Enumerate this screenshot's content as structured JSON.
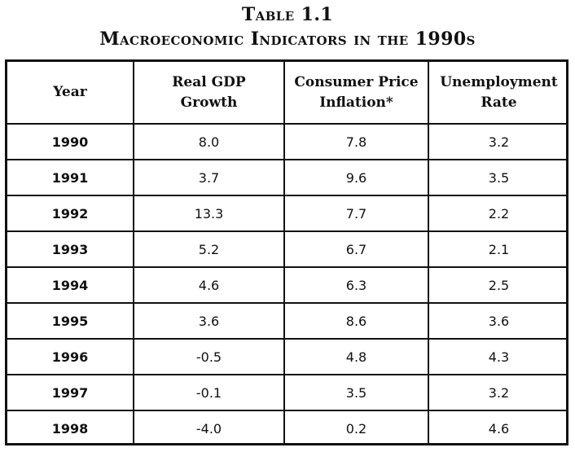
{
  "table": {
    "number": "Table 1.1",
    "title": "Macroeconomic Indicators in the 1990s",
    "headers": [
      [
        "Year"
      ],
      [
        "Real GDP",
        "Growth"
      ],
      [
        "Consumer Price",
        "Inflation*"
      ],
      [
        "Unemployment",
        "Rate"
      ]
    ],
    "rows": [
      {
        "year": "1990",
        "gdp": "8.0",
        "cpi": "7.8",
        "unemployment": "3.2"
      },
      {
        "year": "1991",
        "gdp": "3.7",
        "cpi": "9.6",
        "unemployment": "3.5"
      },
      {
        "year": "1992",
        "gdp": "13.3",
        "cpi": "7.7",
        "unemployment": "2.2"
      },
      {
        "year": "1993",
        "gdp": "5.2",
        "cpi": "6.7",
        "unemployment": "2.1"
      },
      {
        "year": "1994",
        "gdp": "4.6",
        "cpi": "6.3",
        "unemployment": "2.5"
      },
      {
        "year": "1995",
        "gdp": "3.6",
        "cpi": "8.6",
        "unemployment": "3.6"
      },
      {
        "year": "1996",
        "gdp": "-0.5",
        "cpi": "4.8",
        "unemployment": "4.3"
      },
      {
        "year": "1997",
        "gdp": "-0.1",
        "cpi": "3.5",
        "unemployment": "3.2"
      },
      {
        "year": "1998",
        "gdp": "-4.0",
        "cpi": "0.2",
        "unemployment": "4.6"
      }
    ]
  }
}
